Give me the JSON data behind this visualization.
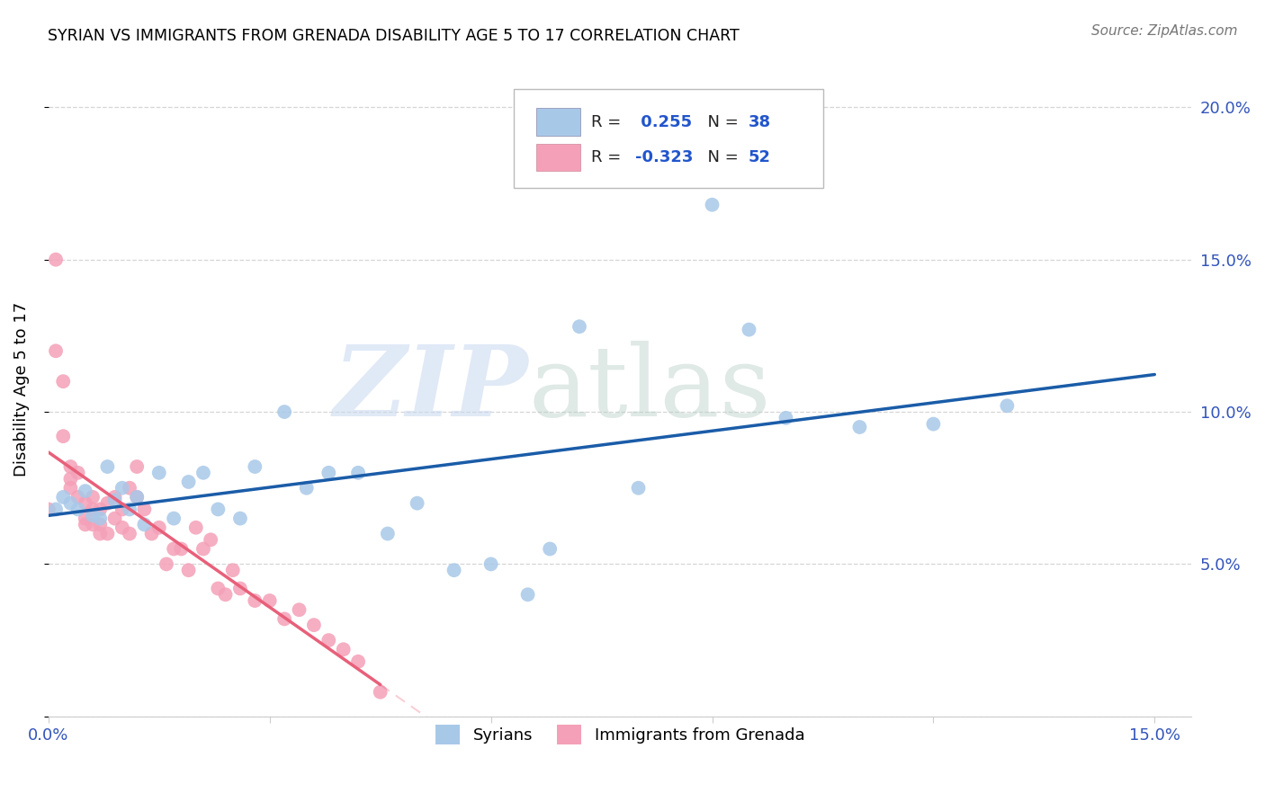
{
  "title": "SYRIAN VS IMMIGRANTS FROM GRENADA DISABILITY AGE 5 TO 17 CORRELATION CHART",
  "source": "Source: ZipAtlas.com",
  "ylabel": "Disability Age 5 to 17",
  "xlim": [
    0.0,
    0.155
  ],
  "ylim": [
    0.0,
    0.215
  ],
  "yticks": [
    0.0,
    0.05,
    0.1,
    0.15,
    0.2
  ],
  "xtick_positions": [
    0.0,
    0.03,
    0.06,
    0.09,
    0.12,
    0.15
  ],
  "r_syrian": 0.255,
  "n_syrian": 38,
  "r_grenada": -0.323,
  "n_grenada": 52,
  "color_syrian": "#a8c8e8",
  "color_grenada": "#f4a0b8",
  "line_color_syrian": "#1a5ca8",
  "line_color_grenada": "#e8607a",
  "syrian_x": [
    0.001,
    0.002,
    0.003,
    0.004,
    0.005,
    0.006,
    0.007,
    0.008,
    0.009,
    0.01,
    0.011,
    0.012,
    0.013,
    0.015,
    0.017,
    0.019,
    0.021,
    0.023,
    0.026,
    0.028,
    0.032,
    0.035,
    0.038,
    0.042,
    0.046,
    0.05,
    0.055,
    0.06,
    0.065,
    0.068,
    0.072,
    0.08,
    0.09,
    0.095,
    0.1,
    0.11,
    0.12,
    0.13
  ],
  "syrian_y": [
    0.068,
    0.072,
    0.07,
    0.068,
    0.074,
    0.066,
    0.065,
    0.082,
    0.071,
    0.075,
    0.068,
    0.072,
    0.063,
    0.08,
    0.065,
    0.077,
    0.08,
    0.068,
    0.065,
    0.082,
    0.1,
    0.075,
    0.08,
    0.08,
    0.06,
    0.07,
    0.048,
    0.05,
    0.04,
    0.055,
    0.128,
    0.075,
    0.168,
    0.127,
    0.098,
    0.095,
    0.096,
    0.102
  ],
  "grenada_x": [
    0.0,
    0.001,
    0.001,
    0.002,
    0.002,
    0.003,
    0.003,
    0.003,
    0.004,
    0.004,
    0.005,
    0.005,
    0.005,
    0.006,
    0.006,
    0.006,
    0.007,
    0.007,
    0.007,
    0.008,
    0.008,
    0.009,
    0.009,
    0.01,
    0.01,
    0.011,
    0.011,
    0.012,
    0.012,
    0.013,
    0.014,
    0.015,
    0.016,
    0.017,
    0.018,
    0.019,
    0.02,
    0.021,
    0.022,
    0.023,
    0.024,
    0.025,
    0.026,
    0.028,
    0.03,
    0.032,
    0.034,
    0.036,
    0.038,
    0.04,
    0.042,
    0.045
  ],
  "grenada_y": [
    0.068,
    0.15,
    0.12,
    0.11,
    0.092,
    0.082,
    0.078,
    0.075,
    0.08,
    0.072,
    0.07,
    0.065,
    0.063,
    0.072,
    0.068,
    0.063,
    0.068,
    0.063,
    0.06,
    0.07,
    0.06,
    0.072,
    0.065,
    0.068,
    0.062,
    0.075,
    0.06,
    0.082,
    0.072,
    0.068,
    0.06,
    0.062,
    0.05,
    0.055,
    0.055,
    0.048,
    0.062,
    0.055,
    0.058,
    0.042,
    0.04,
    0.048,
    0.042,
    0.038,
    0.038,
    0.032,
    0.035,
    0.03,
    0.025,
    0.022,
    0.018,
    0.008
  ]
}
